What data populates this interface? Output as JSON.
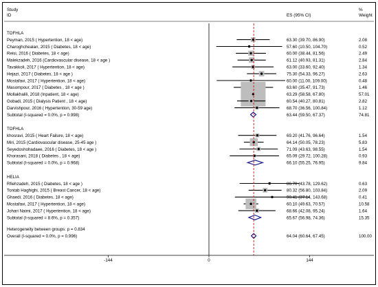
{
  "header": {
    "study": "Study",
    "id": "ID",
    "es": "ES (95% CI)",
    "pct": "%",
    "weight": "Weight"
  },
  "chart_data": {
    "type": "forest",
    "x_ticks": [
      "-144",
      "0",
      "144"
    ],
    "null_line": 0,
    "overall_line": 64.04,
    "groups": [
      {
        "title": "TOFHLA",
        "rows": [
          {
            "label": "Peyman, 2015 ( Hypertention, 18 < age)",
            "es": 63.3,
            "lo": 39.7,
            "hi": 86.9,
            "ci": "63.30 (39.70, 86.90)",
            "weight": "2.08"
          },
          {
            "label": "Charoghchealan, 2015 ( Diabetes, 18 < age)",
            "es": 57.6,
            "lo": 10.5,
            "hi": 104.7,
            "ci": "57.60 (10.50, 104.70)",
            "weight": "0.52"
          },
          {
            "label": "Reisi, 2016 ( Diabetes, 18 < age)",
            "es": 60.0,
            "lo": 38.44,
            "hi": 81.56,
            "ci": "60.00 (38.44, 81.56)",
            "weight": "2.49"
          },
          {
            "label": "Malekzadeh, 2016 (Cardiovascular disease, 18 < age )",
            "es": 61.12,
            "lo": 40.93,
            "hi": 81.31,
            "ci": "61.12 (40.93, 81.31)",
            "weight": "2.84"
          },
          {
            "label": "Tavakkoli, 2017 ( Hypertention, 18 < age)",
            "es": 63.0,
            "lo": 33.6,
            "hi": 92.4,
            "ci": "63.00 (33.60, 92.40)",
            "weight": "1.34"
          },
          {
            "label": "Hejazi, 2017 ( Diabetes, 18 < age )",
            "es": 75.3,
            "lo": 54.33,
            "hi": 96.27,
            "ci": "75.30 (54.33, 96.27)",
            "weight": "2.63"
          },
          {
            "label": "Mostafavi, 2017 ( Hypertention, 18 < age)",
            "es": 60.0,
            "lo": 11.0,
            "hi": 109.0,
            "ci": "60.00 (11.00, 109.00)",
            "weight": "0.48"
          },
          {
            "label": "Masompour, 2017 ( Diabetes , 18 < age )",
            "es": 63.6,
            "lo": 35.47,
            "hi": 91.73,
            "ci": "63.60 (35.47, 91.73)",
            "weight": "1.46"
          },
          {
            "label": "Mollakhalili, 2018 (Inpatient, 18 < age)",
            "es": 63.29,
            "lo": 58.58,
            "hi": 67.8,
            "ci": "63.29 (58.58, 67.80)",
            "weight": "57.01"
          },
          {
            "label": "Gobadi, 2015 ( Dialysis Patient , 18 < age)",
            "es": 60.54,
            "lo": 40.27,
            "hi": 80.81,
            "ci": "60.54 (40.27, 80.81)",
            "weight": "2.82"
          },
          {
            "label": "Darvishpour, 2016 ( Hypertention, 30-59 age)",
            "es": 68.7,
            "lo": 36.56,
            "hi": 100.84,
            "ci": "68.70 (36.56, 100.84)",
            "weight": "1.12"
          }
        ],
        "subtotal": {
          "label": "Subtotal  (I-squared = 0.0%, p = 0.998)",
          "es": 63.44,
          "lo": 59.5,
          "hi": 67.37,
          "ci": "63.44 (59.50, 67.37)",
          "weight": "74.81"
        }
      },
      {
        "title": "TOFHLA",
        "rows": [
          {
            "label": "khosravi, 2015 ( Heart Failure, 18 < age)",
            "es": 69.2,
            "lo": 41.76,
            "hi": 96.64,
            "ci": "69.20 (41.76, 96.64)",
            "weight": "1.54"
          },
          {
            "label": "Miri, 2015 (Cardiovascular disease, 25-45 age )",
            "es": 64.14,
            "lo": 50.05,
            "hi": 78.23,
            "ci": "64.14 (50.05, 78.23)",
            "weight": "5.83"
          },
          {
            "label": "Seyedoshohadaee, 2016 ( Diabetes, 18 < age )",
            "es": 71.09,
            "lo": 43.63,
            "hi": 98.55,
            "ci": "71.09 (43.63, 98.55)",
            "weight": "1.54"
          },
          {
            "label": "Khorasani, 2018 ( Diabetes , 18 < age)",
            "es": 65.09,
            "lo": 29.72,
            "hi": 100.28,
            "ci": "65.09 (29.72, 100.28)",
            "weight": "0.93"
          }
        ],
        "subtotal": {
          "label": "Subtotal  (I-squared = 0.0%, p = 0.968)",
          "es": 66.1,
          "lo": 55.25,
          "hi": 76.95,
          "ci": "66.10 (55.25, 76.95)",
          "weight": "9.84"
        }
      },
      {
        "title": "HELIA",
        "rows": [
          {
            "label": "Rfiehzadeh, 2015 ( Diabetes, 18 < age )",
            "es": 86.7,
            "lo": 43.78,
            "hi": 129.62,
            "ci": "86.70 (43.78, 129.62)",
            "weight": "0.63"
          },
          {
            "label": "Tontab Haghighi, 2015 ( Breast Cancer, 18 < age)",
            "es": 80.32,
            "lo": 56.8,
            "hi": 103.84,
            "ci": "80.32 (56.80, 103.84)",
            "weight": "2.09"
          },
          {
            "label": "Ghaedi, 2016 ( Diabetes, 18 < age)",
            "es": 90.41,
            "lo": 37.14,
            "hi": 143.68,
            "ci": "90.41 (37.14, 143.68)",
            "weight": "0.41"
          },
          {
            "label": "Mostafavi, 2017 ( Hypertention, 18 < age)",
            "es": 60.1,
            "lo": 49.63,
            "hi": 70.57,
            "ci": "60.10 (49.63, 70.57)",
            "weight": "10.58"
          },
          {
            "label": "Johari Naimi, 2017 ( Hypertention, 18 < age)",
            "es": 68.66,
            "lo": 42.08,
            "hi": 95.24,
            "ci": "68.66 (42.08, 95.24)",
            "weight": "1.64"
          }
        ],
        "subtotal": {
          "label": "Subtotal  (I-squared = 8.6%, p = 0.357)",
          "es": 65.67,
          "lo": 56.98,
          "hi": 74.36,
          "ci": "65.67 (56.98, 74.36)",
          "weight": "15.35"
        }
      }
    ],
    "heterogeneity": "Heterogeneity between groups: p = 0.834",
    "overall": {
      "label": "Overall  (I-squared = 0.0%, p = 0.996)",
      "es": 64.04,
      "lo": 60.64,
      "hi": 67.45,
      "ci": "64.04 (60.64, 67.45)",
      "weight": "100.00"
    }
  }
}
